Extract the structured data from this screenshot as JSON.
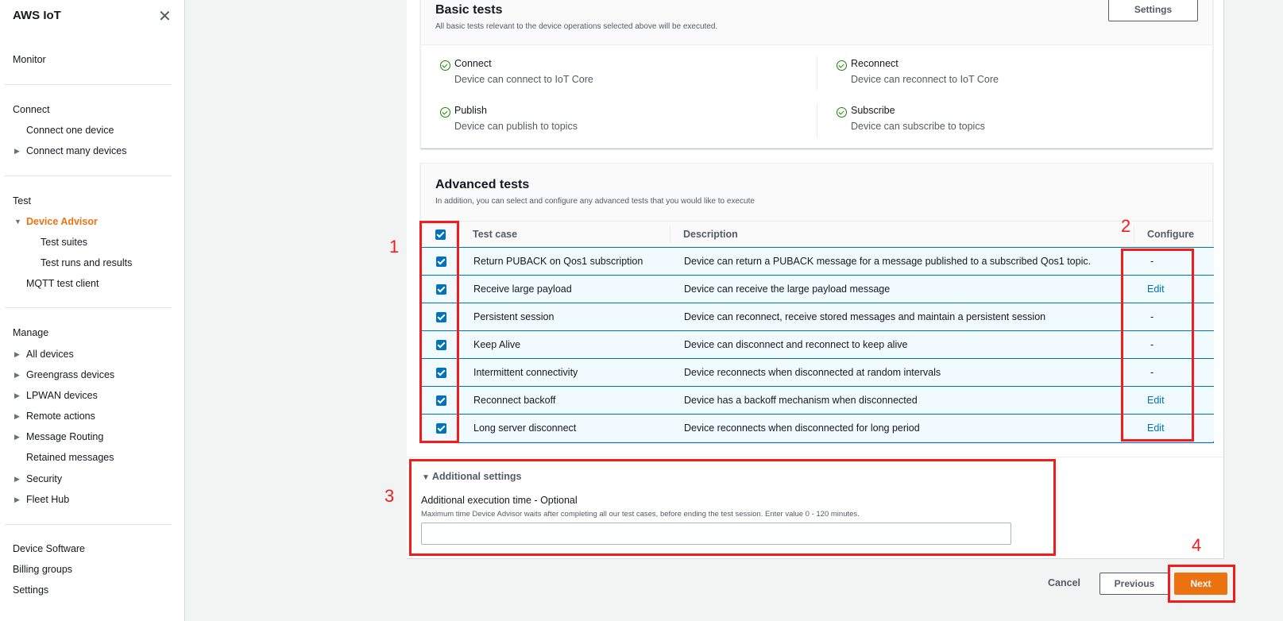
{
  "sidebar": {
    "title": "AWS IoT",
    "close_icon": "close-icon",
    "sections": [
      {
        "items": [
          {
            "label": "Monitor"
          }
        ]
      },
      {
        "items": [
          {
            "label": "Connect"
          },
          {
            "label": "Connect one device"
          },
          {
            "label": "Connect many devices"
          }
        ]
      },
      {
        "items": [
          {
            "label": "Test"
          },
          {
            "label": "Device Advisor"
          },
          {
            "label": "Test suites"
          },
          {
            "label": "Test runs and results"
          },
          {
            "label": "MQTT test client"
          }
        ]
      },
      {
        "items": [
          {
            "label": "Manage"
          },
          {
            "label": "All devices"
          },
          {
            "label": "Greengrass devices"
          },
          {
            "label": "LPWAN devices"
          },
          {
            "label": "Remote actions"
          },
          {
            "label": "Message Routing"
          },
          {
            "label": "Retained messages"
          },
          {
            "label": "Security"
          },
          {
            "label": "Fleet Hub"
          }
        ]
      },
      {
        "items": [
          {
            "label": "Device Software"
          },
          {
            "label": "Billing groups"
          },
          {
            "label": "Settings"
          }
        ]
      }
    ],
    "active_color": "#ec7211"
  },
  "basic": {
    "title": "Basic tests",
    "subtitle": "All basic tests relevant to the device operations selected above will be executed.",
    "settings_label": "Settings",
    "tests": [
      {
        "name": "Connect",
        "desc": "Device can connect to IoT Core"
      },
      {
        "name": "Reconnect",
        "desc": "Device can reconnect to IoT Core"
      },
      {
        "name": "Publish",
        "desc": "Device can publish to topics"
      },
      {
        "name": "Subscribe",
        "desc": "Device can subscribe to topics"
      }
    ]
  },
  "advanced": {
    "title": "Advanced tests",
    "subtitle": "In addition, you can select and configure any advanced tests that you would like to execute",
    "columns": {
      "test_case": "Test case",
      "description": "Description",
      "configure": "Configure"
    },
    "rows": [
      {
        "name": "Return PUBACK on Qos1 subscription",
        "desc": "Device can return a PUBACK message for a message published to a subscribed Qos1 topic.",
        "configure": "-",
        "checked": true
      },
      {
        "name": "Receive large payload",
        "desc": "Device can receive the large payload message",
        "configure": "Edit",
        "checked": true
      },
      {
        "name": "Persistent session",
        "desc": "Device can reconnect, receive stored messages and maintain a persistent session",
        "configure": "-",
        "checked": true
      },
      {
        "name": "Keep Alive",
        "desc": "Device can disconnect and reconnect to keep alive",
        "configure": "-",
        "checked": true
      },
      {
        "name": "Intermittent connectivity",
        "desc": "Device reconnects when disconnected at random intervals",
        "configure": "-",
        "checked": true
      },
      {
        "name": "Reconnect backoff",
        "desc": "Device has a backoff mechanism when disconnected",
        "configure": "Edit",
        "checked": true
      },
      {
        "name": "Long server disconnect",
        "desc": "Device reconnects when disconnected for long period",
        "configure": "Edit",
        "checked": true
      }
    ]
  },
  "additional": {
    "title": "Additional settings",
    "field_label": "Additional execution time - Optional",
    "field_hint": "Maximum time Device Advisor waits after completing all our test cases, before ending the test session. Enter value 0 - 120 minutes.",
    "value": ""
  },
  "footer": {
    "cancel": "Cancel",
    "previous": "Previous",
    "next": "Next",
    "next_color": "#ec7211"
  },
  "annotations": [
    "1",
    "2",
    "3",
    "4"
  ]
}
